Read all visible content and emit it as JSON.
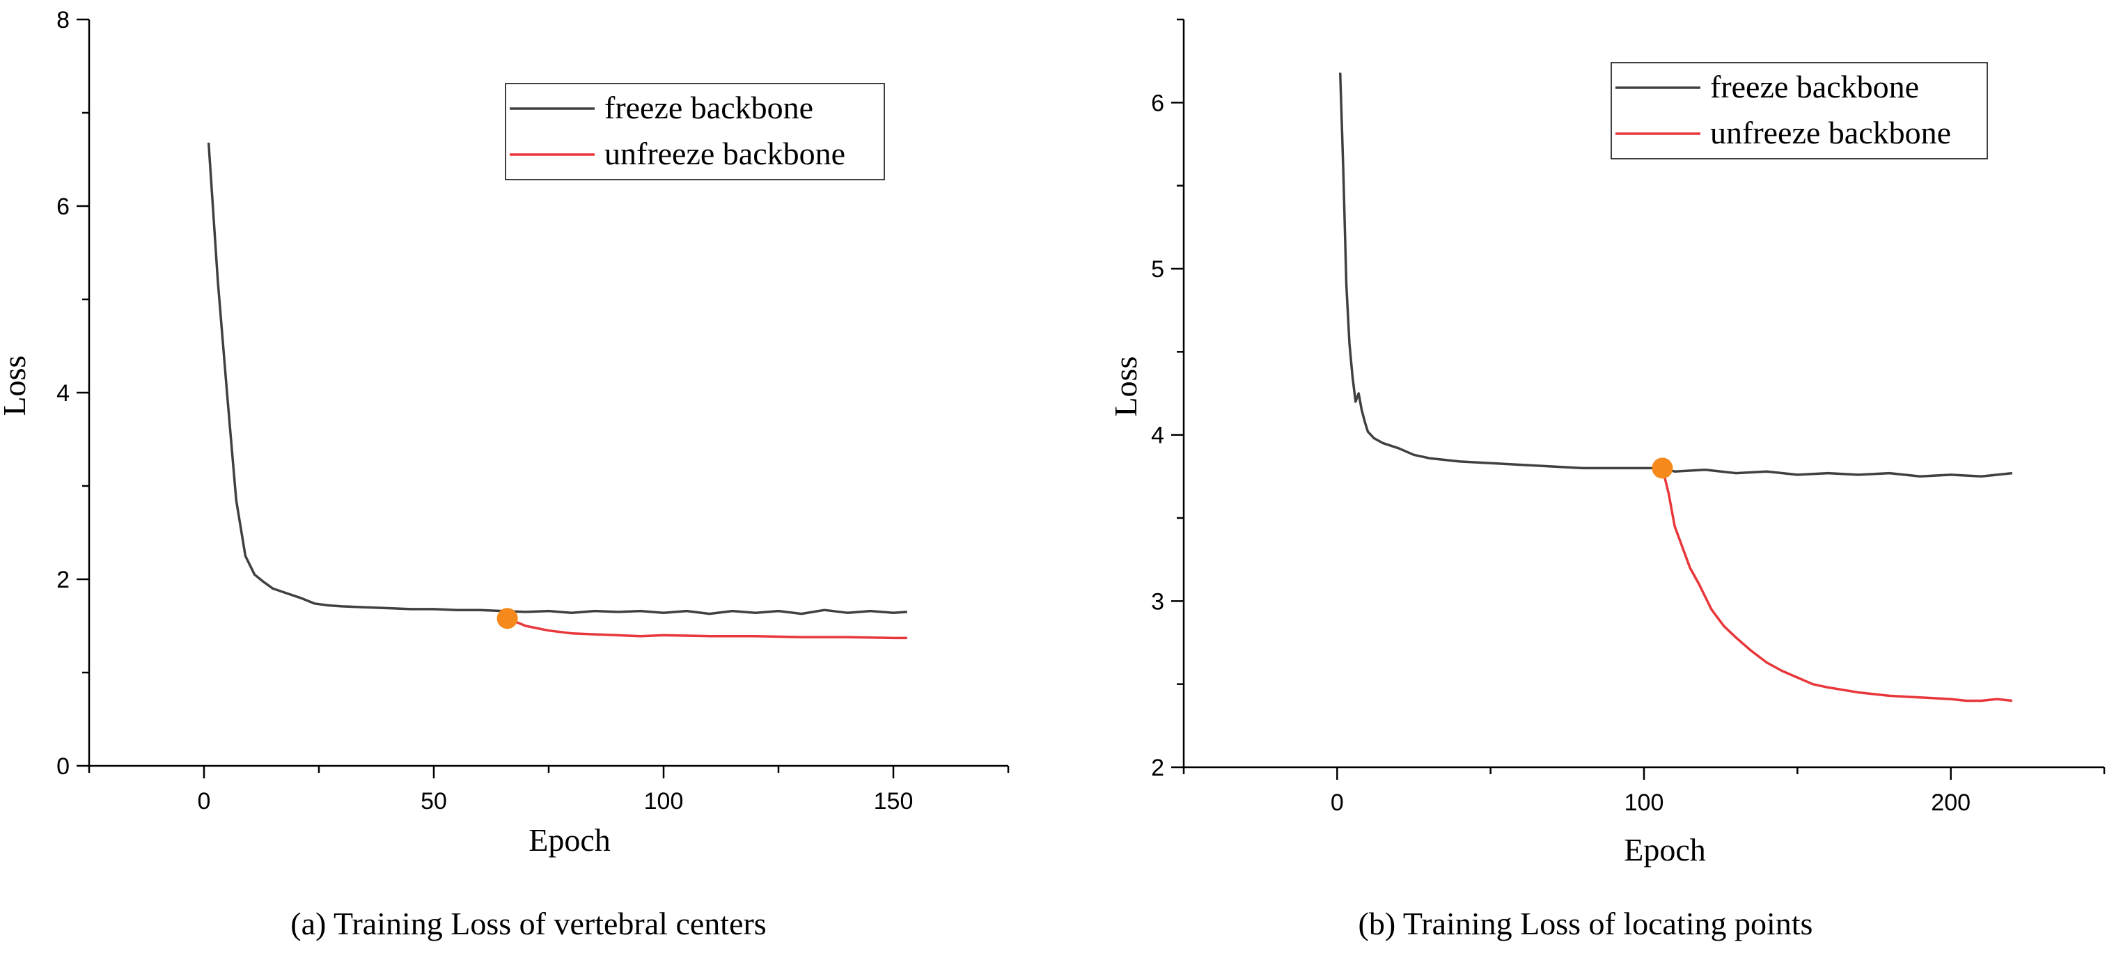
{
  "chart_data": [
    {
      "type": "line",
      "caption": "(a) Training Loss of vertebral centers",
      "xlabel": "Epoch",
      "ylabel": "Loss",
      "xlim": [
        -25,
        175
      ],
      "ylim": [
        0,
        8
      ],
      "xticks": [
        0,
        50,
        100,
        150
      ],
      "yticks": [
        0,
        2,
        4,
        6,
        8
      ],
      "legend": "top-right",
      "grid": false,
      "series": [
        {
          "name": "freeze backbone",
          "color": "#404040",
          "x": [
            1,
            3,
            5,
            7,
            9,
            11,
            13,
            15,
            18,
            21,
            24,
            27,
            30,
            35,
            40,
            45,
            50,
            55,
            60,
            65,
            70,
            75,
            80,
            85,
            90,
            95,
            100,
            105,
            110,
            115,
            120,
            125,
            130,
            135,
            140,
            145,
            150,
            153
          ],
          "y": [
            6.68,
            5.2,
            4.0,
            2.85,
            2.25,
            2.05,
            1.97,
            1.9,
            1.85,
            1.8,
            1.74,
            1.72,
            1.71,
            1.7,
            1.69,
            1.68,
            1.68,
            1.67,
            1.67,
            1.66,
            1.65,
            1.66,
            1.64,
            1.66,
            1.65,
            1.66,
            1.64,
            1.66,
            1.63,
            1.66,
            1.64,
            1.66,
            1.63,
            1.67,
            1.64,
            1.66,
            1.64,
            1.65
          ]
        },
        {
          "name": "unfreeze backbone",
          "color": "#e8373a",
          "x": [
            66,
            70,
            75,
            80,
            85,
            90,
            95,
            100,
            110,
            120,
            130,
            140,
            150,
            153
          ],
          "y": [
            1.58,
            1.5,
            1.45,
            1.42,
            1.41,
            1.4,
            1.39,
            1.4,
            1.39,
            1.39,
            1.38,
            1.38,
            1.37,
            1.37
          ]
        }
      ],
      "marker": {
        "x": 66,
        "y": 1.58,
        "color": "#f5891c"
      }
    },
    {
      "type": "line",
      "caption": "(b) Training Loss of locating points",
      "xlabel": "Epoch",
      "ylabel": "Loss",
      "xlim": [
        -50,
        250
      ],
      "ylim": [
        2,
        6.5
      ],
      "xticks": [
        0,
        100,
        200
      ],
      "yticks": [
        2,
        3,
        4,
        5,
        6
      ],
      "legend": "top-right",
      "grid": false,
      "series": [
        {
          "name": "freeze backbone",
          "color": "#404040",
          "x": [
            1,
            2,
            3,
            4,
            5,
            6,
            7,
            8,
            9,
            10,
            12,
            15,
            20,
            25,
            30,
            40,
            50,
            60,
            70,
            80,
            90,
            100,
            106,
            110,
            120,
            130,
            140,
            150,
            160,
            170,
            180,
            190,
            200,
            210,
            220
          ],
          "y": [
            6.18,
            5.6,
            4.9,
            4.55,
            4.35,
            4.2,
            4.25,
            4.15,
            4.08,
            4.02,
            3.98,
            3.95,
            3.92,
            3.88,
            3.86,
            3.84,
            3.83,
            3.82,
            3.81,
            3.8,
            3.8,
            3.8,
            3.8,
            3.78,
            3.79,
            3.77,
            3.78,
            3.76,
            3.77,
            3.76,
            3.77,
            3.75,
            3.76,
            3.75,
            3.77
          ]
        },
        {
          "name": "unfreeze backbone",
          "color": "#e8373a",
          "x": [
            106,
            108,
            110,
            112,
            115,
            118,
            122,
            126,
            130,
            135,
            140,
            145,
            150,
            155,
            160,
            170,
            180,
            190,
            200,
            205,
            210,
            215,
            220
          ],
          "y": [
            3.8,
            3.65,
            3.45,
            3.35,
            3.2,
            3.1,
            2.95,
            2.85,
            2.78,
            2.7,
            2.63,
            2.58,
            2.54,
            2.5,
            2.48,
            2.45,
            2.43,
            2.42,
            2.41,
            2.4,
            2.4,
            2.41,
            2.4
          ]
        }
      ],
      "marker": {
        "x": 106,
        "y": 3.8,
        "color": "#f5891c"
      }
    }
  ]
}
